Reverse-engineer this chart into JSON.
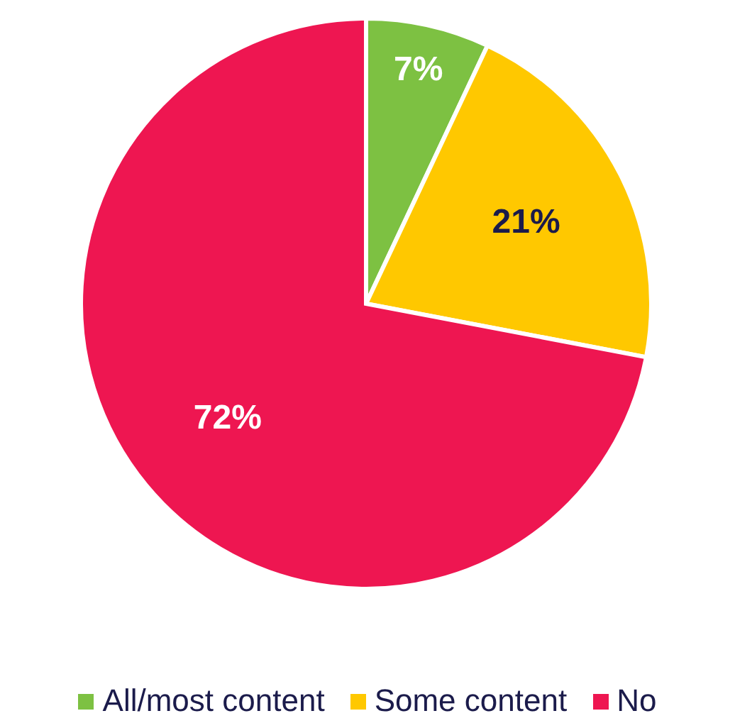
{
  "chart_data": {
    "type": "pie",
    "categories": [
      "All/most content",
      "Some content",
      "No"
    ],
    "values": [
      7,
      21,
      72
    ],
    "colors": [
      "#7dc142",
      "#ffc800",
      "#ee1651"
    ],
    "value_labels": [
      "7%",
      "21%",
      "72%"
    ],
    "legend": "bottom"
  }
}
